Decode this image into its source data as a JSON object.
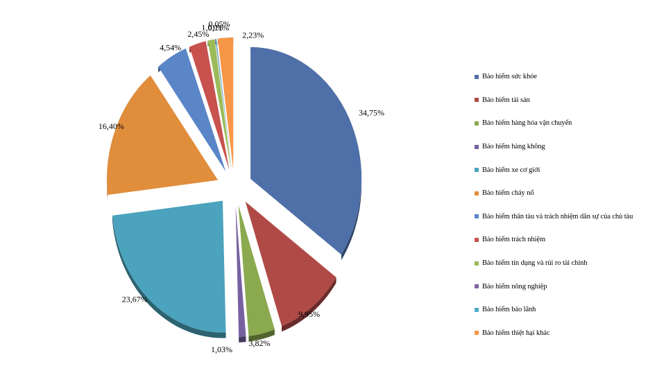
{
  "chart_data": {
    "type": "pie",
    "exploded": true,
    "three_d": true,
    "legend_position": "right",
    "series": [
      {
        "name": "Bảo hiểm sức khỏe",
        "value": 34.75,
        "label": "34,75%",
        "color": "#4F6FA8"
      },
      {
        "name": "Bảo hiểm tài sản",
        "value": 9.95,
        "label": "9,95%",
        "color": "#B04A47"
      },
      {
        "name": "Bảo hiểm hàng hóa vận chuyển",
        "value": 3.82,
        "label": "3,82%",
        "color": "#8BA94E"
      },
      {
        "name": "Bảo hiểm hàng không",
        "value": 1.03,
        "label": "1,03%",
        "color": "#7660A0"
      },
      {
        "name": "Bảo hiểm xe cơ giới",
        "value": 23.67,
        "label": "23,67%",
        "color": "#4BA3BD"
      },
      {
        "name": "Bảo hiểm cháy nổ",
        "value": 16.4,
        "label": "16,40%",
        "color": "#E08D3C"
      },
      {
        "name": "Bảo hiểm thân tàu và trách nhiệm dân sự của chủ tàu",
        "value": 4.54,
        "label": "4,54%",
        "color": "#5A86C8"
      },
      {
        "name": "Bảo hiểm trách nhiệm",
        "value": 2.45,
        "label": "2,45%",
        "color": "#C8524E"
      },
      {
        "name": "Bảo hiểm tín dụng và rủi ro tài chính",
        "value": 1.01,
        "label": "1,01%",
        "color": "#9BBB59"
      },
      {
        "name": "Bảo hiểm nông nghiệp",
        "value": 0.05,
        "label": "0,05%",
        "color": "#8064A2"
      },
      {
        "name": "Bảo hiểm bảo lãnh",
        "value": 0.11,
        "label": "0,11%",
        "color": "#4BACC6"
      },
      {
        "name": "Bảo hiểm thiệt hại khác",
        "value": 2.23,
        "label": "2,23%",
        "color": "#F79646"
      }
    ]
  }
}
